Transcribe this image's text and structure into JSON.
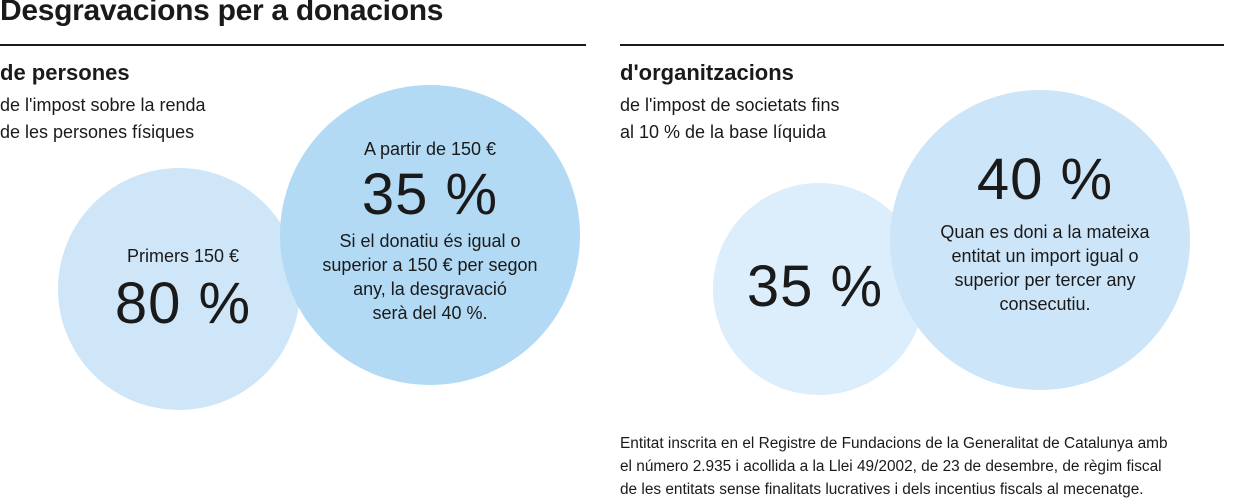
{
  "title": "Desgravacions per a donacions",
  "persons": {
    "heading": "de persones",
    "sub_line1": "de l'impost sobre la renda",
    "sub_line2": "de les persones físiques",
    "first": {
      "label": "Primers 150 €",
      "value": "80 %"
    },
    "above": {
      "label": "A partir de 150 €",
      "value": "35 %",
      "note_lines": [
        "Si el donatiu és igual o",
        "superior a 150 € per segon",
        "any, la desgravació",
        "serà del 40 %."
      ]
    }
  },
  "organizations": {
    "heading": "d'organitzacions",
    "sub_line1": "de l'impost de societats fins",
    "sub_line2": "al 10 % de la base líquida",
    "base": {
      "value": "35 %"
    },
    "repeat": {
      "value": "40 %",
      "note_lines": [
        "Quan es doni a la mateixa",
        "entitat un import igual o",
        "superior per tercer any",
        "consecutiu."
      ]
    }
  },
  "footnote_lines": [
    "Entitat inscrita en el Registre de Fundacions de la Generalitat de Catalunya amb",
    "el número 2.935 i acollida a la Llei 49/2002, de 23 de desembre, de règim fiscal",
    "de les entitats sense finalitats lucratives i dels incentius fiscals al mecenatge."
  ],
  "colors": {
    "circle_first": "#cfe6f8",
    "circle_above": "#b2daf5",
    "circle_org_base": "#dcedfb",
    "circle_org_repeat": "#cde5f8",
    "text": "#1a1a1a"
  }
}
